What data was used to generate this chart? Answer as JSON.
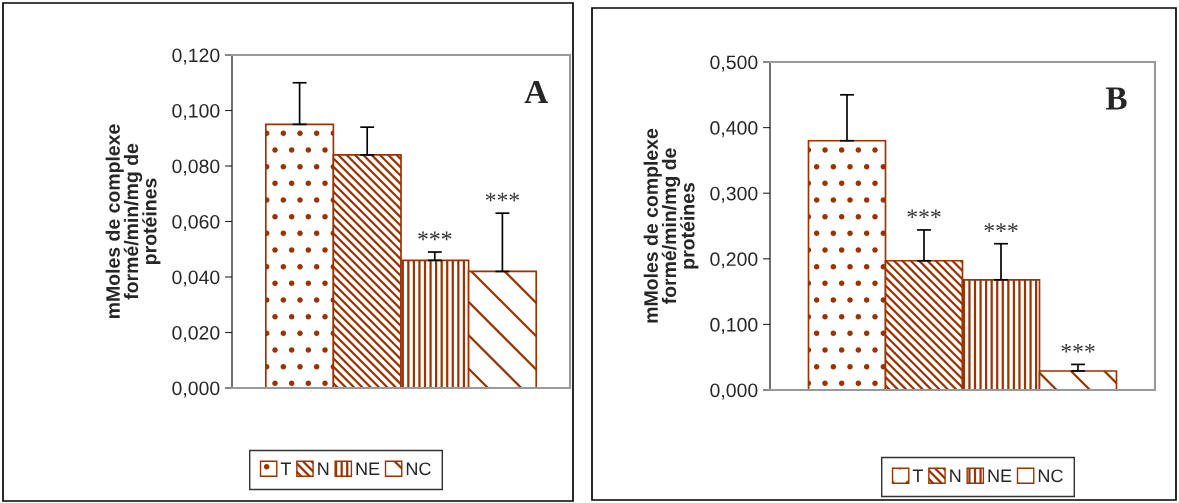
{
  "chart_data": [
    {
      "type": "bar",
      "ylabel": "mMoles de complexe\nformé/min/mg de\nprotéines",
      "categories": [
        null
      ],
      "ylim": [
        0,
        0.12
      ],
      "yticks": [
        {
          "value": 0,
          "label": "0,000"
        },
        {
          "value": 0.02,
          "label": "0,020"
        },
        {
          "value": 0.04,
          "label": "0,040"
        },
        {
          "value": 0.06,
          "label": "0,060"
        },
        {
          "value": 0.08,
          "label": "0,080"
        },
        {
          "value": 0.1,
          "label": "0,100"
        },
        {
          "value": 0.12,
          "label": "0,120"
        }
      ],
      "grid": false,
      "legend": "bottom",
      "annotations": [
        "A"
      ],
      "series": [
        {
          "name": "T",
          "color": "#993300",
          "values": [
            0.095
          ],
          "errors": [
            [
              0.095,
              0.11
            ]
          ]
        },
        {
          "name": "N",
          "color": "#993300",
          "values": [
            0.084
          ],
          "errors": [
            [
              0.084,
              0.094
            ]
          ]
        },
        {
          "name": "NE",
          "color": "#993300",
          "values": [
            0.046
          ],
          "errors": [
            [
              0.046,
              0.049
            ]
          ],
          "value_labels": [
            "***"
          ]
        },
        {
          "name": "NC",
          "color": "#993300",
          "values": [
            0.042
          ],
          "errors": [
            [
              0.042,
              0.063
            ]
          ],
          "value_labels": [
            "***"
          ]
        }
      ]
    },
    {
      "type": "bar",
      "ylabel": "mMoles de complexe\nformé/min/mg de\nprotéines",
      "categories": [
        null
      ],
      "ylim": [
        0,
        0.5
      ],
      "yticks": [
        {
          "value": 0,
          "label": "0,000"
        },
        {
          "value": 0.1,
          "label": "0,100"
        },
        {
          "value": 0.2,
          "label": "0,200"
        },
        {
          "value": 0.3,
          "label": "0,300"
        },
        {
          "value": 0.4,
          "label": "0,400"
        },
        {
          "value": 0.5,
          "label": "0,500"
        }
      ],
      "grid": false,
      "legend": "bottom",
      "annotations": [
        "B"
      ],
      "series": [
        {
          "name": "T",
          "color": "#993300",
          "values": [
            0.38
          ],
          "errors": [
            [
              0.38,
              0.45
            ]
          ]
        },
        {
          "name": "N",
          "color": "#993300",
          "values": [
            0.197
          ],
          "errors": [
            [
              0.197,
              0.244
            ]
          ],
          "value_labels": [
            "***"
          ]
        },
        {
          "name": "NE",
          "color": "#993300",
          "values": [
            0.168
          ],
          "errors": [
            [
              0.168,
              0.223
            ]
          ],
          "value_labels": [
            "***"
          ]
        },
        {
          "name": "NC",
          "color": "#993300",
          "values": [
            0.029
          ],
          "errors": [
            [
              0.029,
              0.039
            ]
          ],
          "value_labels": [
            "***"
          ]
        }
      ]
    }
  ]
}
